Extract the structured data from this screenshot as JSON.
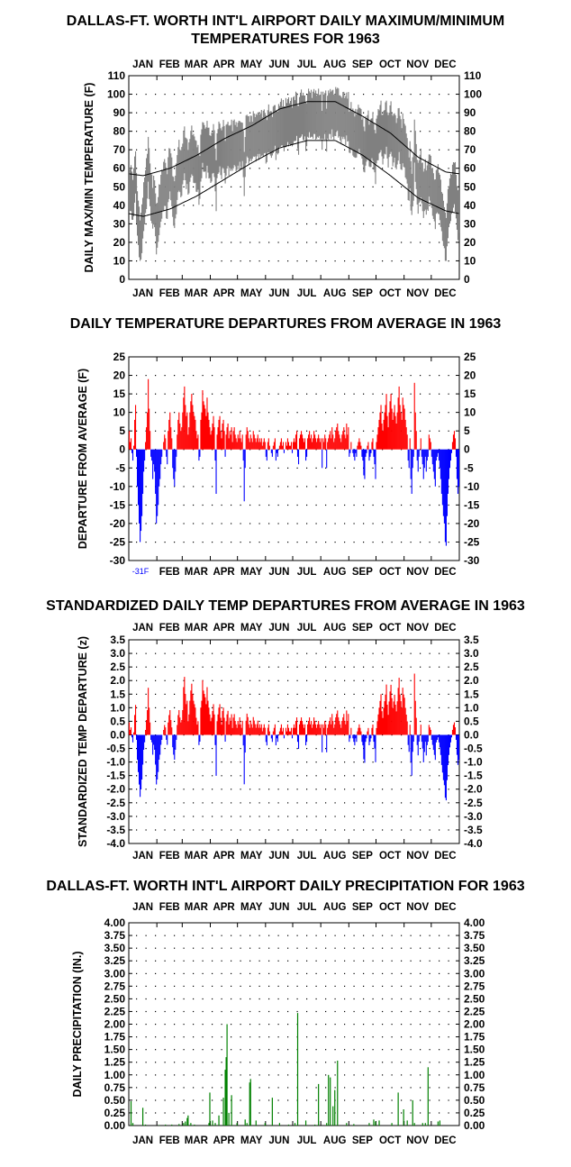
{
  "months": [
    "JAN",
    "FEB",
    "MAR",
    "APR",
    "MAY",
    "JUN",
    "JUL",
    "AUG",
    "SEP",
    "OCT",
    "NOV",
    "DEC"
  ],
  "colors": {
    "positive": "#ff0000",
    "negative": "#0000ff",
    "precip": "#008000",
    "range": "#808080",
    "axis": "#000000",
    "dots": "#000000",
    "min_note": "#0000ff"
  },
  "chart_data": [
    {
      "id": "temps",
      "type": "area",
      "title": "DALLAS-FT. WORTH INT'L AIRPORT DAILY MAXIMUM/MINIMUM TEMPERATURES FOR 1963",
      "ylabel": "DAILY MAX/MIN TEMPERATURE (F)",
      "ylim": [
        0,
        110
      ],
      "yticks": [
        0,
        10,
        20,
        30,
        40,
        50,
        60,
        70,
        80,
        90,
        100,
        110
      ],
      "grid": true,
      "series": [],
      "normal_high_monthly": [
        56,
        60,
        67,
        76,
        83,
        92,
        96,
        96,
        88,
        79,
        66,
        58
      ],
      "normal_low_monthly": [
        34,
        38,
        45,
        54,
        63,
        71,
        75,
        75,
        67,
        56,
        44,
        37
      ],
      "observed_daily_range": {
        "min_value": 10,
        "max_value": 104
      }
    },
    {
      "id": "departures",
      "type": "bar",
      "title": "DAILY TEMPERATURE DEPARTURES FROM AVERAGE IN 1963",
      "ylabel": "DEPARTURE FROM AVERAGE (F)",
      "ylim": [
        -30,
        25
      ],
      "yticks": [
        -30,
        -25,
        -20,
        -15,
        -10,
        -5,
        0,
        5,
        10,
        15,
        20,
        25
      ],
      "grid": true,
      "annotation": "-31F",
      "series": [
        {
          "values": [
            5,
            2,
            3,
            -1,
            -3,
            1,
            8,
            12,
            -2,
            -10,
            -15,
            -20,
            -25,
            -22,
            -18,
            -12,
            -6,
            -3,
            2,
            6,
            10,
            19,
            11,
            5,
            -2,
            -3,
            -8,
            -4,
            -6,
            -12,
            -20,
            -18,
            -15,
            -10,
            -8,
            -4,
            -2,
            0,
            2,
            4,
            3,
            -2,
            -4,
            5,
            8,
            10,
            6,
            3,
            -5,
            -8,
            -10,
            -6,
            -2,
            4,
            8,
            10,
            7,
            5,
            6,
            10,
            14,
            17,
            12,
            9,
            10,
            4,
            6,
            10,
            13,
            15,
            12,
            10,
            9,
            8,
            5,
            3,
            4,
            -3,
            -2,
            8,
            10,
            16,
            13,
            12,
            11,
            9,
            14,
            10,
            8,
            6,
            4,
            5,
            7,
            9,
            6,
            -3,
            -12,
            4,
            6,
            8,
            9,
            5,
            3,
            7,
            8,
            5,
            -2,
            4,
            6,
            7,
            3,
            5,
            4,
            6,
            2,
            5,
            6,
            4,
            3,
            2,
            4,
            3,
            5,
            3,
            2,
            4,
            -3,
            -14,
            -5,
            4,
            6,
            5,
            3,
            2,
            4,
            3,
            2,
            5,
            4,
            3,
            2,
            3,
            4,
            2,
            3,
            2,
            3,
            1,
            2,
            3,
            2,
            -2,
            -3,
            2,
            3,
            1,
            0,
            -1,
            -2,
            1,
            2,
            3,
            -3,
            -1,
            -2,
            0,
            1,
            2,
            3,
            1,
            2,
            -1,
            0,
            2,
            1,
            3,
            2,
            1,
            1,
            2,
            -1,
            2,
            3,
            2,
            4,
            5,
            -2,
            -4,
            3,
            4,
            5,
            4,
            3,
            2,
            3,
            -3,
            -2,
            3,
            4,
            5,
            3,
            4,
            2,
            3,
            5,
            4,
            3,
            2,
            3,
            4,
            3,
            2,
            3,
            -5,
            3,
            2,
            4,
            3,
            -5,
            2,
            3,
            4,
            5,
            3,
            6,
            4,
            2,
            3,
            5,
            6,
            7,
            5,
            4,
            3,
            2,
            4,
            5,
            6,
            4,
            3,
            7,
            4,
            6,
            -2,
            -1,
            2,
            0,
            -1,
            -2,
            -3,
            -1,
            -2,
            1,
            2,
            3,
            2,
            1,
            -2,
            -3,
            -7,
            -8,
            -2,
            -1,
            1,
            2,
            -3,
            -2,
            -1,
            2,
            3,
            -2,
            -4,
            -8,
            2,
            4,
            6,
            8,
            10,
            12,
            7,
            5,
            8,
            10,
            12,
            15,
            9,
            6,
            10,
            13,
            15,
            11,
            8,
            10,
            12,
            9,
            7,
            10,
            14,
            17,
            12,
            10,
            8,
            14,
            12,
            11,
            8,
            6,
            4,
            -3,
            -5,
            3,
            -8,
            -12,
            -5,
            -2,
            18,
            10,
            5,
            -3,
            -6,
            -2,
            0,
            3,
            -2,
            -4,
            -8,
            -5,
            -2,
            -6,
            -3,
            -2,
            4,
            3,
            2,
            -2,
            -4,
            -6,
            -8,
            -10,
            -3,
            -2,
            -1,
            -3,
            -5,
            -8,
            -12,
            -15,
            -18,
            -20,
            -25,
            -26,
            -18,
            -12,
            -8,
            -5,
            -3,
            -1,
            2,
            4,
            5,
            3,
            -2,
            -8,
            -12,
            -10
          ]
        }
      ]
    },
    {
      "id": "standardized",
      "type": "bar",
      "title": "STANDARDIZED DAILY TEMP DEPARTURES FROM AVERAGE IN 1963",
      "ylabel": "STANDARDIZED TEMP DEPARTURE (z)",
      "ylim": [
        -4,
        3.5
      ],
      "yticks": [
        -4.0,
        -3.5,
        -3.0,
        -2.5,
        -2.0,
        -1.5,
        -1.0,
        -0.5,
        0.0,
        0.5,
        1.0,
        1.5,
        2.0,
        2.5,
        3.0,
        3.5
      ],
      "grid": true,
      "series": []
    },
    {
      "id": "precip",
      "type": "bar",
      "title": "DALLAS-FT. WORTH INT'L AIRPORT DAILY PRECIPITATION FOR 1963",
      "ylabel": "DAILY PRECIPITATION (IN.)",
      "ylim": [
        0,
        4
      ],
      "yticks": [
        0,
        0.25,
        0.5,
        0.75,
        1.0,
        1.25,
        1.5,
        1.75,
        2.0,
        2.25,
        2.5,
        2.75,
        3.0,
        3.25,
        3.5,
        3.75,
        4.0
      ],
      "grid": true,
      "series": [
        {
          "points": [
            [
              2,
              0.48
            ],
            [
              4,
              0.05
            ],
            [
              15,
              0.35
            ],
            [
              18,
              0.02
            ],
            [
              33,
              0.01
            ],
            [
              40,
              0.02
            ],
            [
              47,
              0.02
            ],
            [
              55,
              0.03
            ],
            [
              60,
              0.05
            ],
            [
              62,
              0.08
            ],
            [
              64,
              0.15
            ],
            [
              65,
              0.2
            ],
            [
              68,
              0.05
            ],
            [
              72,
              0.02
            ],
            [
              88,
              0.05
            ],
            [
              89,
              0.65
            ],
            [
              92,
              0.1
            ],
            [
              95,
              0.05
            ],
            [
              99,
              0.2
            ],
            [
              104,
              0.55
            ],
            [
              106,
              1.1
            ],
            [
              107,
              1.35
            ],
            [
              108,
              2.0
            ],
            [
              110,
              0.25
            ],
            [
              113,
              0.6
            ],
            [
              119,
              0.05
            ],
            [
              128,
              0.12
            ],
            [
              130,
              0.05
            ],
            [
              133,
              0.85
            ],
            [
              134,
              0.92
            ],
            [
              140,
              0.1
            ],
            [
              150,
              0.05
            ],
            [
              158,
              0.55
            ],
            [
              166,
              0.05
            ],
            [
              176,
              0.02
            ],
            [
              183,
              0.05
            ],
            [
              186,
              2.22
            ],
            [
              195,
              0.1
            ],
            [
              205,
              0.02
            ],
            [
              209,
              0.82
            ],
            [
              218,
              0.05
            ],
            [
              220,
              1.0
            ],
            [
              222,
              0.95
            ],
            [
              225,
              0.38
            ],
            [
              227,
              0.7
            ],
            [
              230,
              1.28
            ],
            [
              240,
              0.05
            ],
            [
              248,
              0.03
            ],
            [
              265,
              0.05
            ],
            [
              270,
              0.12
            ],
            [
              272,
              0.08
            ],
            [
              276,
              0.1
            ],
            [
              290,
              0.05
            ],
            [
              297,
              0.65
            ],
            [
              303,
              0.32
            ],
            [
              307,
              0.1
            ],
            [
              313,
              0.5
            ],
            [
              315,
              0.05
            ],
            [
              324,
              0.05
            ],
            [
              327,
              0.05
            ],
            [
              330,
              1.15
            ],
            [
              341,
              0.08
            ],
            [
              343,
              0.1
            ]
          ]
        }
      ]
    }
  ]
}
